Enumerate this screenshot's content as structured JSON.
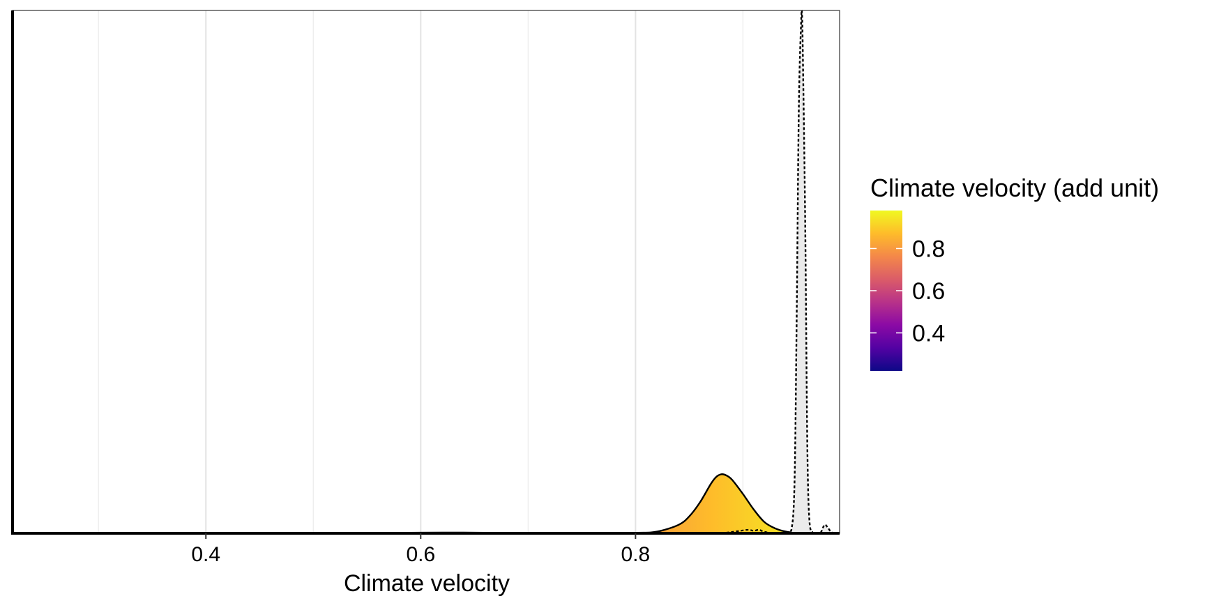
{
  "chart_data": {
    "type": "area",
    "title": "",
    "xlabel": "Climate velocity",
    "ylabel": "",
    "xlim": [
      0.22,
      0.99
    ],
    "x_ticks": [
      "0.4",
      "0.6",
      "0.8"
    ],
    "x_tick_values": [
      0.4,
      0.6,
      0.8
    ],
    "x_minor_grid": [
      0.3,
      0.5,
      0.7,
      0.9
    ],
    "y_axis_labels": false,
    "grid": "vertical",
    "series": [
      {
        "style": "filled-gradient",
        "x": [
          0.3,
          0.5,
          0.55,
          0.6,
          0.63,
          0.66,
          0.7,
          0.75,
          0.8,
          0.82,
          0.84,
          0.85,
          0.86,
          0.87,
          0.875,
          0.88,
          0.885,
          0.89,
          0.9,
          0.91,
          0.92,
          0.93,
          0.94,
          0.95,
          0.96,
          0.97
        ],
        "density": [
          0.0,
          0.0,
          0.15,
          0.45,
          0.55,
          0.4,
          0.15,
          0.1,
          0.4,
          1.2,
          6.0,
          12.0,
          22.0,
          35.0,
          40.0,
          42.0,
          41.0,
          38.0,
          28.0,
          17.0,
          8.0,
          3.5,
          1.2,
          0.3,
          0.05,
          0.0
        ]
      },
      {
        "style": "dashed-grey-fill",
        "x": [
          0.94,
          0.945,
          0.948,
          0.95,
          0.952,
          0.954,
          0.955,
          0.956,
          0.958,
          0.96,
          0.962,
          0.965,
          0.968,
          0.972,
          0.976,
          0.979,
          0.982,
          0.985
        ],
        "density": [
          0.0,
          2.0,
          35.0,
          150.0,
          300.0,
          360.0,
          370.0,
          330.0,
          220.0,
          60.0,
          8.0,
          0.5,
          0.0,
          0.0,
          6.0,
          4.0,
          1.0,
          0.0
        ]
      },
      {
        "style": "dashed-small",
        "x": [
          0.88,
          0.895,
          0.905,
          0.91,
          0.915,
          0.92,
          0.93
        ],
        "density": [
          0.0,
          1.5,
          2.5,
          1.8,
          2.5,
          1.0,
          0.0
        ]
      }
    ],
    "ylim": [
      0,
      370
    ],
    "legend": {
      "title": "Climate velocity (add unit)",
      "placement": "right",
      "type": "colorbar",
      "range": [
        0.22,
        0.98
      ],
      "ticks": [
        "0.8",
        "0.6",
        "0.4"
      ],
      "tick_values": [
        0.8,
        0.6,
        0.4
      ],
      "palette": [
        "#0D0887",
        "#5302A3",
        "#8B0AA5",
        "#B83289",
        "#DB5C68",
        "#F48849",
        "#FEBC2A",
        "#F0F921"
      ]
    }
  }
}
